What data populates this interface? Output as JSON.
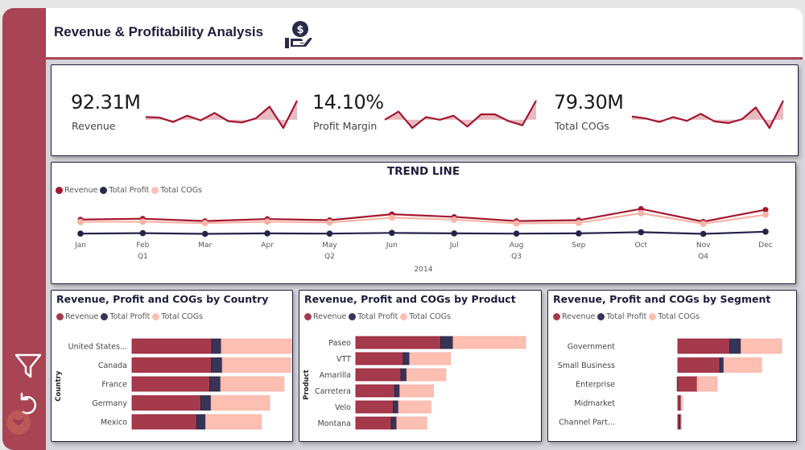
{
  "header": {
    "title": "Revenue & Profitability Analysis",
    "icon": "money-hand-icon"
  },
  "sidebar": {
    "items": [
      {
        "name": "filter",
        "icon": "filter-icon"
      },
      {
        "name": "reset",
        "icon": "reset-icon"
      }
    ],
    "watermark": "logo-watermark"
  },
  "colors": {
    "brand": "#a84453",
    "revenue": "#a63a4d",
    "profit": "#363457",
    "cogs": "#fdbfb2",
    "sparkline": "#a3162f",
    "sparkfill": "#dfa3ad",
    "title": "#1f1d3d"
  },
  "kpis": [
    {
      "value": "92.31M",
      "label": "Revenue",
      "trend": [
        0.4,
        0.38,
        0.22,
        0.45,
        0.28,
        0.55,
        0.25,
        0.2,
        0.35,
        0.78,
        0.0,
        1.0
      ]
    },
    {
      "value": "14.10%",
      "label": "Profit Margin",
      "trend": [
        0.3,
        0.6,
        0.0,
        0.4,
        0.3,
        0.45,
        0.05,
        0.5,
        0.5,
        0.25,
        0.1,
        1.0
      ]
    },
    {
      "value": "79.30M",
      "label": "Total COGs",
      "trend": [
        0.42,
        0.35,
        0.22,
        0.4,
        0.26,
        0.52,
        0.24,
        0.18,
        0.32,
        0.75,
        0.0,
        1.0
      ]
    }
  ],
  "chart_data": [
    {
      "type": "line",
      "title": "TREND LINE",
      "x": [
        "Jan",
        "Feb",
        "Mar",
        "Apr",
        "May",
        "Jun",
        "Jul",
        "Aug",
        "Sep",
        "Oct",
        "Nov",
        "Dec"
      ],
      "quarters": [
        {
          "label": "Q1",
          "at": "Feb"
        },
        {
          "label": "Q2",
          "at": "May"
        },
        {
          "label": "Q3",
          "at": "Aug"
        },
        {
          "label": "Q4",
          "at": "Nov"
        }
      ],
      "year_label": "2014",
      "legend": [
        "Revenue",
        "Total Profit",
        "Total COGs"
      ],
      "legend_position": "top-left",
      "ylim": [
        0,
        20
      ],
      "series": [
        {
          "name": "Revenue",
          "values": [
            6.6,
            6.9,
            6.1,
            6.8,
            6.4,
            8.4,
            7.5,
            6.1,
            6.4,
            10.2,
            5.9,
            9.9
          ]
        },
        {
          "name": "Total Profit",
          "values": [
            0.9,
            1.1,
            0.8,
            1.0,
            0.9,
            1.2,
            1.0,
            0.9,
            1.0,
            1.5,
            0.8,
            1.7
          ]
        },
        {
          "name": "Total COGs",
          "values": [
            5.7,
            5.8,
            5.3,
            5.8,
            5.5,
            7.2,
            6.5,
            5.2,
            5.4,
            8.7,
            5.1,
            8.2
          ]
        }
      ],
      "grid": false
    },
    {
      "type": "bar",
      "stacked": true,
      "orientation": "horizontal",
      "title": "Revenue, Profit and COGs by Country",
      "ylabel": "Country",
      "legend": [
        "Revenue",
        "Total Profit",
        "Total COGs"
      ],
      "categories": [
        "United States...",
        "Canada",
        "France",
        "Germany",
        "Mexico"
      ],
      "series": [
        {
          "name": "Revenue",
          "values": [
            25.0,
            24.9,
            24.4,
            21.6,
            20.3
          ]
        },
        {
          "name": "Total Profit",
          "values": [
            3.0,
            3.4,
            3.4,
            3.2,
            2.8
          ]
        },
        {
          "name": "Total COGs",
          "values": [
            22.0,
            21.5,
            19.9,
            18.4,
            17.5
          ]
        }
      ],
      "xlim": [
        0,
        52
      ]
    },
    {
      "type": "bar",
      "stacked": true,
      "orientation": "horizontal",
      "title": "Revenue, Profit and COGs by Product",
      "ylabel": "Product",
      "legend": [
        "Revenue",
        "Total Profit",
        "Total COGs"
      ],
      "categories": [
        "Paseo",
        "VTT",
        "Amarilla",
        "Carretera",
        "Velo",
        "Montana"
      ],
      "series": [
        {
          "name": "Revenue",
          "values": [
            33.0,
            18.4,
            17.5,
            15.1,
            14.6,
            13.8
          ]
        },
        {
          "name": "Total Profit",
          "values": [
            4.8,
            2.5,
            2.3,
            2.0,
            2.0,
            2.1
          ]
        },
        {
          "name": "Total COGs",
          "values": [
            28.2,
            15.9,
            15.2,
            13.1,
            12.6,
            11.7
          ]
        }
      ],
      "xlim": [
        0,
        68
      ]
    },
    {
      "type": "bar",
      "stacked": true,
      "orientation": "horizontal",
      "title": "Revenue, Profit and COGs by Segment",
      "ylabel": "",
      "legend": [
        "Revenue",
        "Total Profit",
        "Total COGs"
      ],
      "categories": [
        "Government",
        "Small Business",
        "Enterprise",
        "Midmarket",
        "Channel Part..."
      ],
      "series": [
        {
          "name": "Revenue",
          "values": [
            52.5,
            42.4,
            19.6,
            2.4,
            1.8
          ]
        },
        {
          "name": "Total Profit",
          "values": [
            11.4,
            4.1,
            -0.6,
            0.7,
            1.3
          ]
        },
        {
          "name": "Total COGs",
          "values": [
            41.1,
            38.3,
            20.2,
            1.7,
            0.5
          ]
        }
      ],
      "xlim": [
        0,
        120
      ]
    }
  ]
}
